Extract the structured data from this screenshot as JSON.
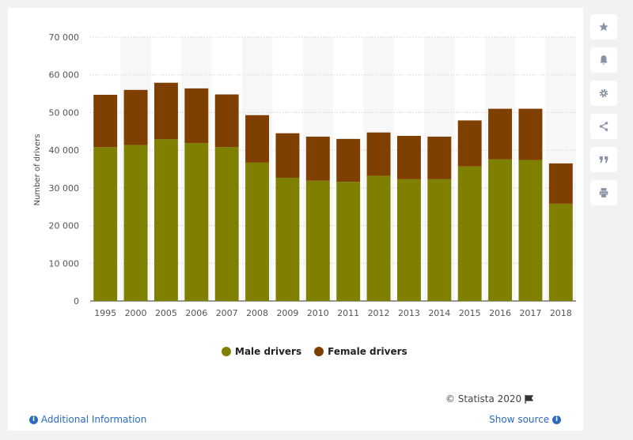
{
  "chart_data": {
    "type": "bar",
    "stacked": true,
    "categories": [
      "1995",
      "2000",
      "2005",
      "2006",
      "2007",
      "2008",
      "2009",
      "2010",
      "2011",
      "2012",
      "2013",
      "2014",
      "2015",
      "2016",
      "2017",
      "2018"
    ],
    "series": [
      {
        "name": "Male drivers",
        "color": "#808000",
        "values": [
          40800,
          41400,
          42900,
          41900,
          40800,
          36700,
          32700,
          31900,
          31600,
          33200,
          32300,
          32300,
          35700,
          37600,
          37400,
          25800
        ]
      },
      {
        "name": "Female drivers",
        "color": "#7f3f00",
        "values": [
          13900,
          14600,
          15000,
          14500,
          14000,
          12600,
          11800,
          11700,
          11400,
          11500,
          11500,
          11300,
          12200,
          13400,
          13600,
          10700
        ]
      }
    ],
    "ylabel": "Number of drivers",
    "ylim": [
      0,
      70000
    ],
    "yticks": [
      0,
      10000,
      20000,
      30000,
      40000,
      50000,
      60000,
      70000
    ],
    "ytick_labels": [
      "0",
      "10 000",
      "20 000",
      "30 000",
      "40 000",
      "50 000",
      "60 000",
      "70 000"
    ],
    "grid": true,
    "legend_position": "bottom"
  },
  "footer": {
    "credit": "© Statista 2020",
    "additional_info": "Additional Information",
    "show_source": "Show source"
  },
  "toolbar": {
    "icons": [
      "star-icon",
      "bell-icon",
      "gear-icon",
      "share-icon",
      "quote-icon",
      "print-icon"
    ]
  }
}
